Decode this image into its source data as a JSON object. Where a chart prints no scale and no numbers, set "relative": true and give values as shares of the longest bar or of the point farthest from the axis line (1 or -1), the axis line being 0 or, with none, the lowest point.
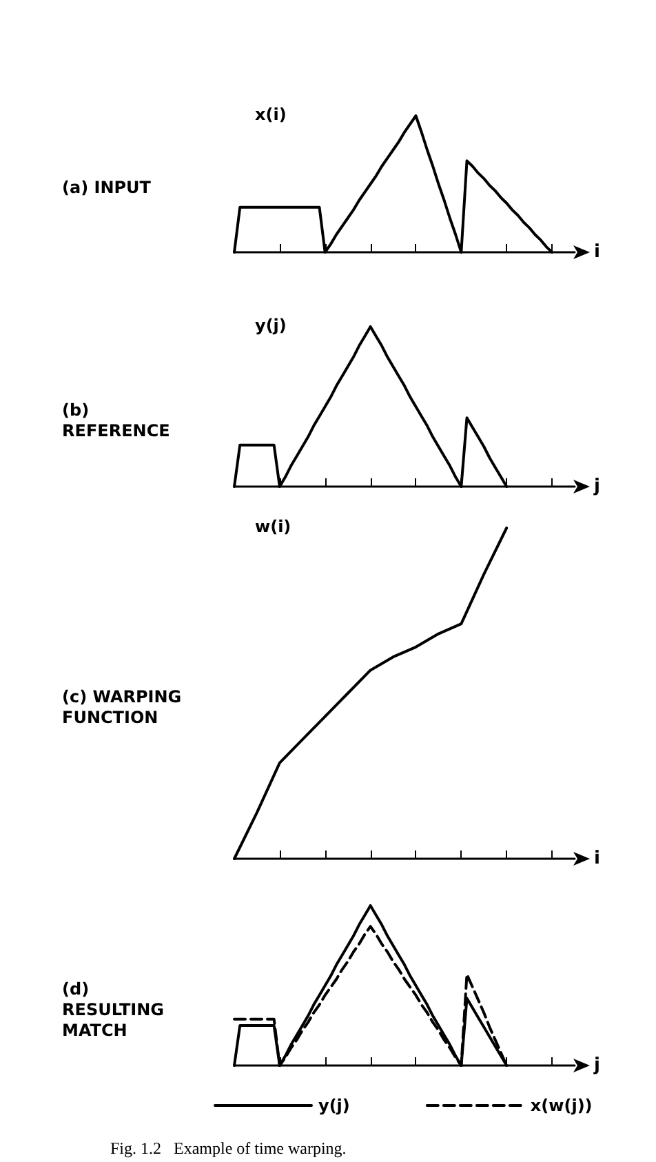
{
  "chart_data": [
    {
      "type": "line",
      "title": "(a) INPUT",
      "ylabel": "x(i)",
      "xlabel": "i",
      "relative": true,
      "marker": "none",
      "line_style": "solid",
      "categories": [
        null,
        null,
        null,
        null,
        null,
        null,
        null,
        null,
        null,
        null,
        null,
        null,
        null,
        null,
        null,
        null,
        null,
        null,
        null,
        null,
        null,
        null,
        null,
        null,
        null,
        null,
        null,
        null,
        null,
        null,
        null,
        null,
        null,
        null,
        null,
        null,
        null,
        null,
        null,
        null,
        null,
        null,
        null,
        null,
        null,
        null,
        null,
        null,
        null,
        null,
        null,
        null,
        null,
        null,
        null,
        null,
        null,
        null,
        null,
        null,
        null
      ],
      "series": [
        {
          "color": "#000000",
          "values": [
            0,
            0.33,
            0.33,
            0.33,
            0.33,
            0.33,
            0.33,
            0.33,
            0.33,
            0.33,
            0.33,
            0.33,
            0.33,
            0.33,
            0.33,
            0.33,
            0,
            0.06,
            0.13,
            0.19,
            0.25,
            0.31,
            0.38,
            0.44,
            0.5,
            0.56,
            0.63,
            0.69,
            0.75,
            0.81,
            0.88,
            0.94,
            1,
            0.88,
            0.75,
            0.63,
            0.5,
            0.38,
            0.25,
            0.13,
            0,
            0.67,
            0.63,
            0.58,
            0.54,
            0.49,
            0.45,
            0.4,
            0.36,
            0.31,
            0.27,
            0.22,
            0.18,
            0.13,
            0.09,
            0.04,
            0,
            null,
            null,
            null,
            null
          ]
        }
      ]
    },
    {
      "type": "line",
      "title": "(b) REFERENCE",
      "ylabel": "y(j)",
      "xlabel": "j",
      "relative": true,
      "marker": "none",
      "line_style": "solid",
      "categories": [
        null,
        null,
        null,
        null,
        null,
        null,
        null,
        null,
        null,
        null,
        null,
        null,
        null,
        null,
        null,
        null,
        null,
        null,
        null,
        null,
        null,
        null,
        null,
        null,
        null,
        null,
        null,
        null,
        null,
        null,
        null,
        null,
        null,
        null,
        null,
        null,
        null,
        null,
        null,
        null,
        null,
        null,
        null,
        null,
        null,
        null,
        null,
        null,
        null,
        null,
        null,
        null,
        null,
        null,
        null,
        null,
        null,
        null,
        null,
        null,
        null
      ],
      "series": [
        {
          "color": "#000000",
          "values": [
            0,
            0.26,
            0.26,
            0.26,
            0.26,
            0.26,
            0.26,
            0.26,
            0,
            0.06,
            0.13,
            0.19,
            0.25,
            0.31,
            0.38,
            0.44,
            0.5,
            0.56,
            0.63,
            0.69,
            0.75,
            0.81,
            0.88,
            0.94,
            1,
            0.94,
            0.88,
            0.81,
            0.75,
            0.69,
            0.63,
            0.56,
            0.5,
            0.44,
            0.38,
            0.31,
            0.25,
            0.19,
            0.13,
            0.06,
            0,
            0.43,
            0.37,
            0.31,
            0.25,
            0.18,
            0.12,
            0.06,
            0,
            null,
            null,
            null,
            null,
            null,
            null,
            null,
            null,
            null,
            null,
            null,
            null
          ]
        }
      ]
    },
    {
      "type": "line",
      "title": "(c) WARPING FUNCTION",
      "ylabel": "w(i)",
      "xlabel": "i",
      "relative": true,
      "marker": "none",
      "line_style": "solid",
      "categories": [
        null,
        null,
        null,
        null,
        null,
        null,
        null,
        null,
        null,
        null,
        null,
        null,
        null,
        null,
        null,
        null
      ],
      "series": [
        {
          "color": "#000000",
          "values": [
            0,
            0.14,
            0.29,
            0.36,
            0.43,
            0.5,
            0.57,
            0.61,
            0.64,
            0.68,
            0.71,
            0.86,
            1,
            null,
            null,
            null
          ]
        }
      ]
    },
    {
      "type": "line",
      "title": "(d) RESULTING MATCH",
      "xlabel": "j",
      "relative": true,
      "marker": "none",
      "legend": "bottom",
      "annotations": [
        "Fig. 1.2   Example of time warping."
      ],
      "categories": [
        null,
        null,
        null,
        null,
        null,
        null,
        null,
        null,
        null,
        null,
        null,
        null,
        null,
        null,
        null,
        null,
        null,
        null,
        null,
        null,
        null,
        null,
        null,
        null,
        null,
        null,
        null,
        null,
        null,
        null,
        null,
        null,
        null,
        null,
        null,
        null,
        null,
        null,
        null,
        null,
        null,
        null,
        null,
        null,
        null,
        null,
        null,
        null,
        null,
        null,
        null,
        null,
        null,
        null,
        null,
        null,
        null,
        null,
        null,
        null,
        null
      ],
      "series": [
        {
          "name": "y(j)",
          "color": "#000000",
          "line_style": "solid",
          "values": [
            0,
            0.25,
            0.25,
            0.25,
            0.25,
            0.25,
            0.25,
            0.25,
            0,
            0.06,
            0.13,
            0.19,
            0.25,
            0.31,
            0.38,
            0.44,
            0.5,
            0.56,
            0.63,
            0.69,
            0.75,
            0.81,
            0.88,
            0.94,
            1,
            0.94,
            0.88,
            0.81,
            0.75,
            0.69,
            0.63,
            0.56,
            0.5,
            0.44,
            0.38,
            0.31,
            0.25,
            0.19,
            0.13,
            0.06,
            0,
            0.42,
            0.36,
            0.3,
            0.24,
            0.18,
            0.12,
            0.06,
            0,
            null,
            null,
            null,
            null,
            null,
            null,
            null,
            null,
            null,
            null,
            null,
            null
          ]
        },
        {
          "name": "x(w(j))",
          "color": "#000000",
          "line_style": "dashed",
          "values": [
            0.29,
            0.29,
            0.29,
            0.29,
            0.29,
            0.29,
            0.29,
            0.29,
            0,
            0.05,
            0.11,
            0.16,
            0.22,
            0.27,
            0.33,
            0.38,
            0.44,
            0.49,
            0.54,
            0.6,
            0.65,
            0.71,
            0.76,
            0.82,
            0.87,
            0.82,
            0.76,
            0.71,
            0.65,
            0.6,
            0.54,
            0.49,
            0.44,
            0.38,
            0.33,
            0.27,
            0.22,
            0.16,
            0.11,
            0.05,
            0,
            0.57,
            0.49,
            0.41,
            0.33,
            0.24,
            0.16,
            0.08,
            0,
            null,
            null,
            null,
            null,
            null,
            null,
            null,
            null,
            null,
            null,
            null,
            null
          ]
        }
      ]
    }
  ]
}
